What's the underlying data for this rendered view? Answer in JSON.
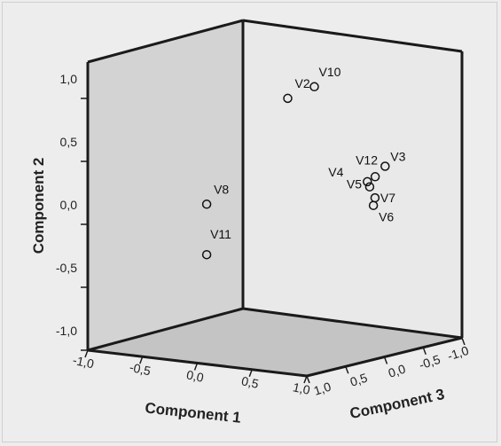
{
  "chart_data": {
    "type": "scatter",
    "subtype": "3d-scatter",
    "title": "",
    "axes": {
      "x": {
        "label": "Component 1",
        "range": [
          -1.0,
          1.0
        ],
        "ticks": [
          "-1,0",
          "-0,5",
          "0,0",
          "0,5",
          "1,0"
        ]
      },
      "y": {
        "label": "Component 2",
        "range": [
          -1.0,
          1.0
        ],
        "ticks": [
          "-1,0",
          "-0,5",
          "0,0",
          "0,5",
          "1,0"
        ]
      },
      "z": {
        "label": "Component 3",
        "range": [
          -1.0,
          1.0
        ],
        "ticks": [
          "1,0",
          "0,5",
          "0,0",
          "-0,5",
          "-1,0"
        ]
      }
    },
    "points": [
      {
        "label": "V2",
        "x": 0.72,
        "y": 0.88,
        "z": 0.85
      },
      {
        "label": "V10",
        "x": 0.75,
        "y": 0.92,
        "z": 0.55
      },
      {
        "label": "V12",
        "x": 0.88,
        "y": 0.22,
        "z": -0.05
      },
      {
        "label": "V3",
        "x": 0.9,
        "y": 0.28,
        "z": -0.15
      },
      {
        "label": "V4",
        "x": 0.88,
        "y": 0.2,
        "z": 0.05
      },
      {
        "label": "V5",
        "x": 0.88,
        "y": 0.16,
        "z": 0.02
      },
      {
        "label": "V7",
        "x": 0.9,
        "y": 0.08,
        "z": -0.02
      },
      {
        "label": "V6",
        "x": 0.9,
        "y": 0.03,
        "z": 0.0
      },
      {
        "label": "V8",
        "x": 0.05,
        "y": 0.1,
        "z": 0.95
      },
      {
        "label": "V11",
        "x": 0.05,
        "y": -0.25,
        "z": 0.95
      }
    ],
    "grid": false,
    "legend": "none",
    "colors": {
      "back_wall": "#e9e9e9",
      "left_wall": "#d3d3d3",
      "floor": "#c4c4c4",
      "frame": "#1a1a1a",
      "marker": "#111111"
    }
  }
}
